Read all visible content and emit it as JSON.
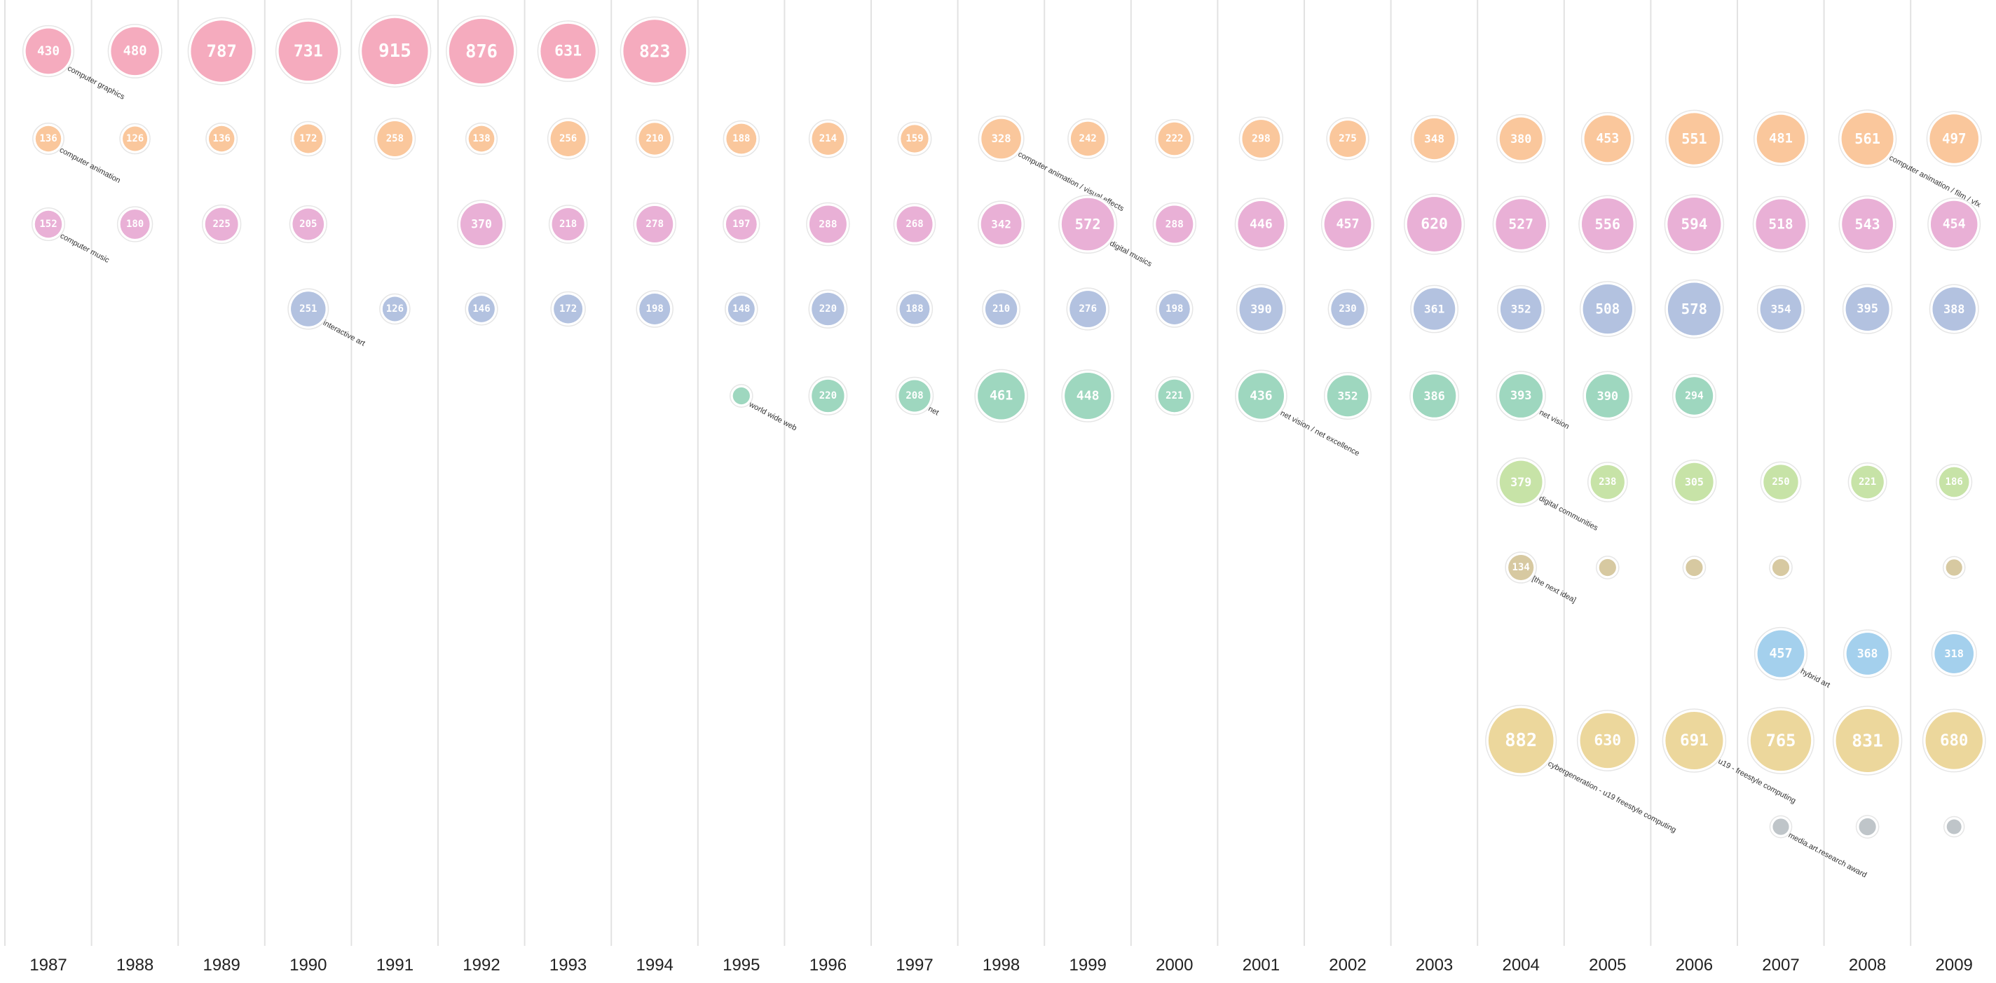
{
  "chart_data": {
    "type": "scatter",
    "subtype": "bubble-timeline",
    "title": "",
    "x": [
      "1987",
      "1988",
      "1989",
      "1990",
      "1991",
      "1992",
      "1993",
      "1994",
      "1995",
      "1996",
      "1997",
      "1998",
      "1999",
      "2000",
      "2001",
      "2002",
      "2003",
      "2004",
      "2005",
      "2006",
      "2007",
      "2008",
      "2009"
    ],
    "grid": "vertical",
    "series": [
      {
        "name": "computer graphics",
        "color": "#ea4a72",
        "points": [
          {
            "year": "1987",
            "value": 430,
            "label": "computer graphics"
          },
          {
            "year": "1988",
            "value": 480
          },
          {
            "year": "1989",
            "value": 787
          },
          {
            "year": "1990",
            "value": 731
          },
          {
            "year": "1991",
            "value": 915
          },
          {
            "year": "1992",
            "value": 876
          },
          {
            "year": "1993",
            "value": 631
          },
          {
            "year": "1994",
            "value": 823
          }
        ]
      },
      {
        "name": "computer animation",
        "color": "#f4862a",
        "points": [
          {
            "year": "1987",
            "value": 136,
            "label": "computer animation"
          },
          {
            "year": "1988",
            "value": 126
          },
          {
            "year": "1989",
            "value": 136
          },
          {
            "year": "1990",
            "value": 172
          },
          {
            "year": "1991",
            "value": 258
          },
          {
            "year": "1992",
            "value": 138
          },
          {
            "year": "1993",
            "value": 256
          },
          {
            "year": "1994",
            "value": 210
          },
          {
            "year": "1995",
            "value": 188
          },
          {
            "year": "1996",
            "value": 214
          },
          {
            "year": "1997",
            "value": 159
          },
          {
            "year": "1998",
            "value": 328,
            "label": "computer animation / visual effects"
          },
          {
            "year": "1999",
            "value": 242
          },
          {
            "year": "2000",
            "value": 222
          },
          {
            "year": "2001",
            "value": 298
          },
          {
            "year": "2002",
            "value": 275
          },
          {
            "year": "2003",
            "value": 348
          },
          {
            "year": "2004",
            "value": 380
          },
          {
            "year": "2005",
            "value": 453
          },
          {
            "year": "2006",
            "value": 551
          },
          {
            "year": "2007",
            "value": 481
          },
          {
            "year": "2008",
            "value": 561,
            "label": "computer animation / film / vfx"
          },
          {
            "year": "2009",
            "value": 497
          }
        ]
      },
      {
        "name": "computer music",
        "color": "#cf55a6",
        "points": [
          {
            "year": "1987",
            "value": 152,
            "label": "computer music"
          },
          {
            "year": "1988",
            "value": 180
          },
          {
            "year": "1989",
            "value": 225
          },
          {
            "year": "1990",
            "value": 205
          },
          {
            "year": "1992",
            "value": 370
          },
          {
            "year": "1993",
            "value": 218
          },
          {
            "year": "1994",
            "value": 278
          },
          {
            "year": "1995",
            "value": 197
          },
          {
            "year": "1996",
            "value": 288
          },
          {
            "year": "1997",
            "value": 268
          },
          {
            "year": "1998",
            "value": 342
          },
          {
            "year": "1999",
            "value": 572,
            "label": "digital musics"
          },
          {
            "year": "2000",
            "value": 288
          },
          {
            "year": "2001",
            "value": 446
          },
          {
            "year": "2002",
            "value": 457
          },
          {
            "year": "2003",
            "value": 620
          },
          {
            "year": "2004",
            "value": 527
          },
          {
            "year": "2005",
            "value": 556
          },
          {
            "year": "2006",
            "value": 594
          },
          {
            "year": "2007",
            "value": 518
          },
          {
            "year": "2008",
            "value": 543
          },
          {
            "year": "2009",
            "value": 454
          }
        ]
      },
      {
        "name": "interactive art",
        "color": "#5a7dbd",
        "points": [
          {
            "year": "1990",
            "value": 251,
            "label": "interactive art"
          },
          {
            "year": "1991",
            "value": 126
          },
          {
            "year": "1992",
            "value": 146
          },
          {
            "year": "1993",
            "value": 172
          },
          {
            "year": "1994",
            "value": 198
          },
          {
            "year": "1995",
            "value": 148
          },
          {
            "year": "1996",
            "value": 220
          },
          {
            "year": "1997",
            "value": 188
          },
          {
            "year": "1998",
            "value": 210
          },
          {
            "year": "1999",
            "value": 276
          },
          {
            "year": "2000",
            "value": 198
          },
          {
            "year": "2001",
            "value": 390
          },
          {
            "year": "2002",
            "value": 230
          },
          {
            "year": "2003",
            "value": 361
          },
          {
            "year": "2004",
            "value": 352
          },
          {
            "year": "2005",
            "value": 508
          },
          {
            "year": "2006",
            "value": 578
          },
          {
            "year": "2007",
            "value": 354
          },
          {
            "year": "2008",
            "value": 395
          },
          {
            "year": "2009",
            "value": 388
          }
        ]
      },
      {
        "name": "world wide web",
        "color": "#2ea874",
        "points": [
          {
            "year": "1995",
            "value": 60,
            "label": "world wide web",
            "hide_value": true
          },
          {
            "year": "1996",
            "value": 220
          },
          {
            "year": "1997",
            "value": 208,
            "label": "net"
          },
          {
            "year": "1998",
            "value": 461
          },
          {
            "year": "1999",
            "value": 448
          },
          {
            "year": "2000",
            "value": 221
          },
          {
            "year": "2001",
            "value": 436,
            "label": "net vision / net excellence"
          },
          {
            "year": "2002",
            "value": 352
          },
          {
            "year": "2003",
            "value": 386
          },
          {
            "year": "2004",
            "value": 393,
            "label": "net vision"
          },
          {
            "year": "2005",
            "value": 390
          },
          {
            "year": "2006",
            "value": 294
          }
        ]
      },
      {
        "name": "digital communities",
        "color": "#86c441",
        "points": [
          {
            "year": "2004",
            "value": 379,
            "label": "digital communities"
          },
          {
            "year": "2005",
            "value": 238
          },
          {
            "year": "2006",
            "value": 305
          },
          {
            "year": "2007",
            "value": 250
          },
          {
            "year": "2008",
            "value": 221
          },
          {
            "year": "2009",
            "value": 186
          }
        ]
      },
      {
        "name": "[the next idea]",
        "color": "#a88a36",
        "points": [
          {
            "year": "2004",
            "value": 134,
            "label": "[the next idea]"
          },
          {
            "year": "2005",
            "value": 60,
            "hide_value": true
          },
          {
            "year": "2006",
            "value": 60,
            "hide_value": true
          },
          {
            "year": "2007",
            "value": 60,
            "hide_value": true
          },
          {
            "year": "2009",
            "value": 55,
            "hide_value": true
          }
        ]
      },
      {
        "name": "hybrid art",
        "color": "#3a9ad8",
        "points": [
          {
            "year": "2007",
            "value": 457,
            "label": "hybrid art"
          },
          {
            "year": "2008",
            "value": 368
          },
          {
            "year": "2009",
            "value": 318
          }
        ]
      },
      {
        "name": "u19",
        "color": "#d6a92a",
        "points": [
          {
            "year": "2004",
            "value": 882,
            "label": "cybergeneration - u19 freestyle computing"
          },
          {
            "year": "2005",
            "value": 630
          },
          {
            "year": "2006",
            "value": 691,
            "label": "u19 - freestyle computing"
          },
          {
            "year": "2007",
            "value": 765
          },
          {
            "year": "2008",
            "value": 831
          },
          {
            "year": "2009",
            "value": 680
          }
        ]
      },
      {
        "name": "media.art.research award",
        "color": "#74828a",
        "points": [
          {
            "year": "2007",
            "value": 55,
            "label": "media.art.research award",
            "hide_value": true
          },
          {
            "year": "2008",
            "value": 60,
            "hide_value": true
          },
          {
            "year": "2009",
            "value": 45,
            "hide_value": true
          }
        ]
      }
    ]
  }
}
